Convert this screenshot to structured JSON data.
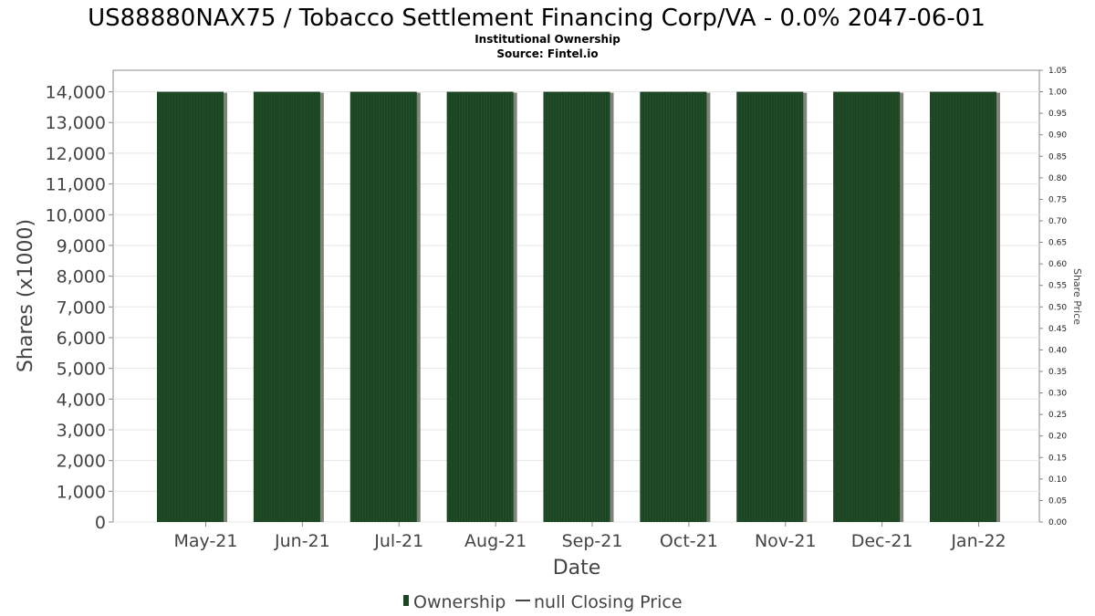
{
  "chart_data": {
    "type": "bar",
    "title": "US88880NAX75 / Tobacco Settlement Financing Corp/VA - 0.0% 2047-06-01",
    "subtitle_lines": [
      "Institutional Ownership",
      "Source: Fintel.io"
    ],
    "xlabel": "Date",
    "ylabel": "Shares (x1000)",
    "ylabel_right": "Share Price",
    "categories": [
      "May-21",
      "Jun-21",
      "Jul-21",
      "Aug-21",
      "Sep-21",
      "Oct-21",
      "Nov-21",
      "Dec-21",
      "Jan-22"
    ],
    "series": [
      {
        "name": "Ownership",
        "values": [
          14000,
          14000,
          14000,
          14000,
          14000,
          14000,
          14000,
          14000,
          14000
        ],
        "color": "#1b4422"
      }
    ],
    "ylim": [
      0,
      14700
    ],
    "yticks": [
      0,
      1000,
      2000,
      3000,
      4000,
      5000,
      6000,
      7000,
      8000,
      9000,
      10000,
      11000,
      12000,
      13000,
      14000
    ],
    "ytick_labels": [
      "0",
      "1,000",
      "2,000",
      "3,000",
      "4,000",
      "5,000",
      "6,000",
      "7,000",
      "8,000",
      "9,000",
      "10,000",
      "11,000",
      "12,000",
      "13,000",
      "14,000"
    ],
    "ylim_right": [
      0,
      1.05
    ],
    "yticks_right_labels": [
      "0.00",
      "0.05",
      "0.10",
      "0.15",
      "0.20",
      "0.25",
      "0.30",
      "0.35",
      "0.40",
      "0.45",
      "0.50",
      "0.55",
      "0.60",
      "0.65",
      "0.70",
      "0.75",
      "0.80",
      "0.85",
      "0.90",
      "0.95",
      "1.00",
      "1.05"
    ],
    "grid": true,
    "legend": {
      "placement": "bottom",
      "entries": [
        {
          "label": "Ownership",
          "color": "#1b4422",
          "symbol": "bar"
        },
        {
          "label": "null Closing Price",
          "color": "#444444",
          "symbol": "line"
        }
      ]
    }
  }
}
